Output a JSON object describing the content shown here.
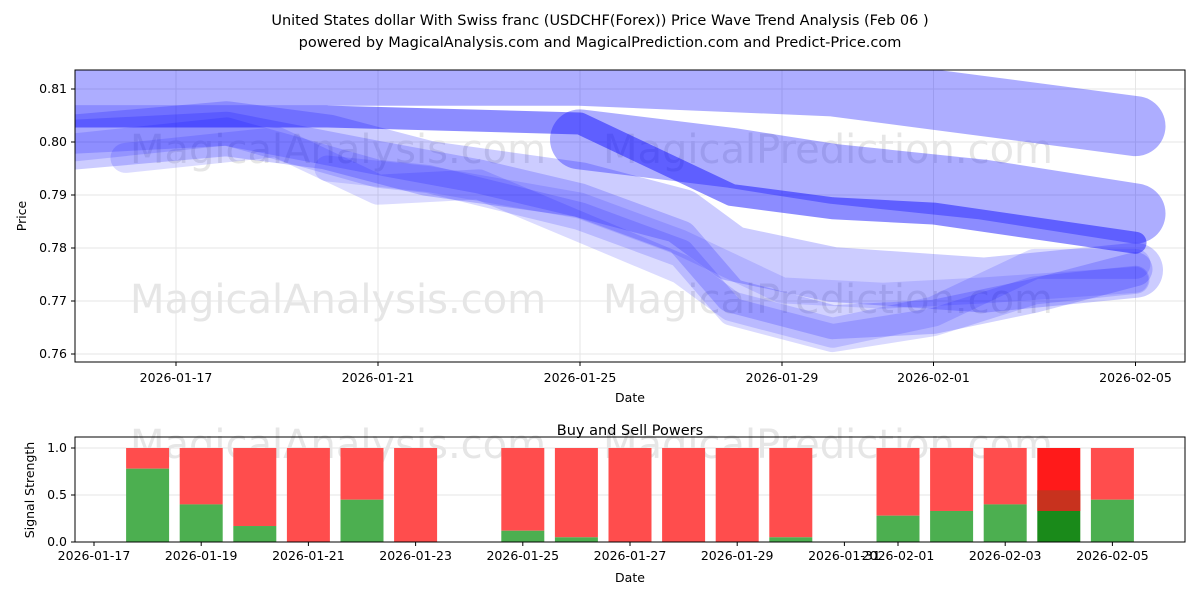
{
  "title": "United States dollar With Swiss franc (USDCHF(Forex)) Price Wave Trend Analysis (Feb 06 )",
  "subtitle": "powered by MagicalAnalysis.com and MagicalPrediction.com and Predict-Price.com",
  "watermarks": [
    "MagicalAnalysis.com",
    "MagicalPrediction.com"
  ],
  "colors": {
    "wave": "#0000ff",
    "buy": "#4caf50",
    "sell": "#ff4d4d",
    "buy_strong": "#1a8a1a",
    "sell_strong": "#ff1a1a"
  },
  "chart_data": [
    {
      "type": "line",
      "xlabel": "Date",
      "ylabel": "Price",
      "ylim": [
        0.7585,
        0.8136
      ],
      "xlim": [
        "2026-01-15",
        "2026-02-06"
      ],
      "grid": true,
      "xticks": [
        "2026-01-17",
        "2026-01-21",
        "2026-01-25",
        "2026-01-29",
        "2026-02-01",
        "2026-02-05"
      ],
      "yticks": [
        "0.76",
        "0.77",
        "0.78",
        "0.79",
        "0.80",
        "0.81"
      ],
      "series": [
        {
          "name": "wave-1",
          "x": [
            "2026-01-15",
            "2026-01-20",
            "2026-01-25",
            "2026-01-30",
            "2026-02-05"
          ],
          "y": [
            0.8125,
            0.8125,
            0.8125,
            0.8105,
            0.803
          ]
        },
        {
          "name": "wave-2",
          "x": [
            "2026-01-25",
            "2026-01-28",
            "2026-01-30",
            "2026-02-02",
            "2026-02-05"
          ],
          "y": [
            0.8005,
            0.797,
            0.794,
            0.791,
            0.7865
          ]
        },
        {
          "name": "wave-3",
          "x": [
            "2026-01-15",
            "2026-01-20",
            "2026-01-25",
            "2026-01-28",
            "2026-01-30",
            "2026-02-01",
            "2026-02-05"
          ],
          "y": [
            0.8048,
            0.8048,
            0.8035,
            0.79,
            0.7875,
            0.7865,
            0.781
          ]
        },
        {
          "name": "wave-4",
          "x": [
            "2026-01-15",
            "2026-01-18",
            "2026-01-20",
            "2026-01-22",
            "2026-01-25",
            "2026-01-27",
            "2026-01-28",
            "2026-01-30",
            "2026-02-02",
            "2026-02-05"
          ],
          "y": [
            0.8,
            0.8025,
            0.8,
            0.795,
            0.791,
            0.786,
            0.779,
            0.775,
            0.773,
            0.7758
          ]
        },
        {
          "name": "wave-5",
          "x": [
            "2026-01-15",
            "2026-01-18",
            "2026-01-21",
            "2026-01-23",
            "2026-01-25",
            "2026-01-27",
            "2026-01-28",
            "2026-01-30",
            "2026-02-01",
            "2026-02-03",
            "2026-02-05"
          ],
          "y": [
            0.801,
            0.8025,
            0.797,
            0.7935,
            0.789,
            0.782,
            0.771,
            0.766,
            0.767,
            0.771,
            0.776
          ]
        },
        {
          "name": "wave-6",
          "x": [
            "2026-01-15",
            "2026-01-18",
            "2026-01-21",
            "2026-01-22",
            "2026-01-25",
            "2026-01-27",
            "2026-01-28",
            "2026-01-30",
            "2026-02-01",
            "2026-02-03",
            "2026-02-05"
          ],
          "y": [
            0.799,
            0.802,
            0.794,
            0.793,
            0.786,
            0.779,
            0.768,
            0.763,
            0.766,
            0.772,
            0.774
          ]
        },
        {
          "name": "wave-7",
          "x": [
            "2026-01-16",
            "2026-01-19",
            "2026-01-21",
            "2026-01-23",
            "2026-01-25",
            "2026-01-27",
            "2026-01-28",
            "2026-01-30",
            "2026-02-01",
            "2026-02-03",
            "2026-02-05"
          ],
          "y": [
            0.797,
            0.8,
            0.791,
            0.792,
            0.784,
            0.776,
            0.769,
            0.764,
            0.768,
            0.777,
            0.777
          ]
        },
        {
          "name": "wave-8",
          "x": [
            "2026-01-20",
            "2026-01-22",
            "2026-01-25",
            "2026-01-27",
            "2026-01-29",
            "2026-01-31",
            "2026-02-02",
            "2026-02-05"
          ],
          "y": [
            0.795,
            0.793,
            0.788,
            0.781,
            0.772,
            0.771,
            0.772,
            0.774
          ]
        }
      ]
    },
    {
      "type": "bar",
      "title": "Buy and Sell Powers",
      "xlabel": "Date",
      "ylabel": "Signal Strength",
      "ylim": [
        0,
        1.05
      ],
      "yticks": [
        "0.0",
        "0.5",
        "1.0"
      ],
      "xticks": [
        "2026-01-17",
        "2026-01-19",
        "2026-01-21",
        "2026-01-23",
        "2026-01-25",
        "2026-01-27",
        "2026-01-29",
        "2026-01-31",
        "2026-02-01",
        "2026-02-03",
        "2026-02-05"
      ],
      "categories": [
        "2026-01-18",
        "2026-01-19",
        "2026-01-20",
        "2026-01-21",
        "2026-01-22",
        "2026-01-23",
        "2026-01-25",
        "2026-01-26",
        "2026-01-27",
        "2026-01-28",
        "2026-01-29",
        "2026-01-30",
        "2026-02-01",
        "2026-02-02",
        "2026-02-03",
        "2026-02-04",
        "2026-02-05"
      ],
      "buy": [
        0.78,
        0.4,
        0.17,
        0.0,
        0.45,
        0.0,
        0.12,
        0.05,
        0.0,
        0.0,
        0.0,
        0.05,
        0.28,
        0.33,
        0.4,
        0.33,
        0.45
      ],
      "sell": [
        0.22,
        0.6,
        0.83,
        1.0,
        0.55,
        1.0,
        0.88,
        0.95,
        1.0,
        1.0,
        1.0,
        0.95,
        0.72,
        0.67,
        0.6,
        0.67,
        0.55
      ],
      "highlight": "2026-02-04"
    }
  ]
}
